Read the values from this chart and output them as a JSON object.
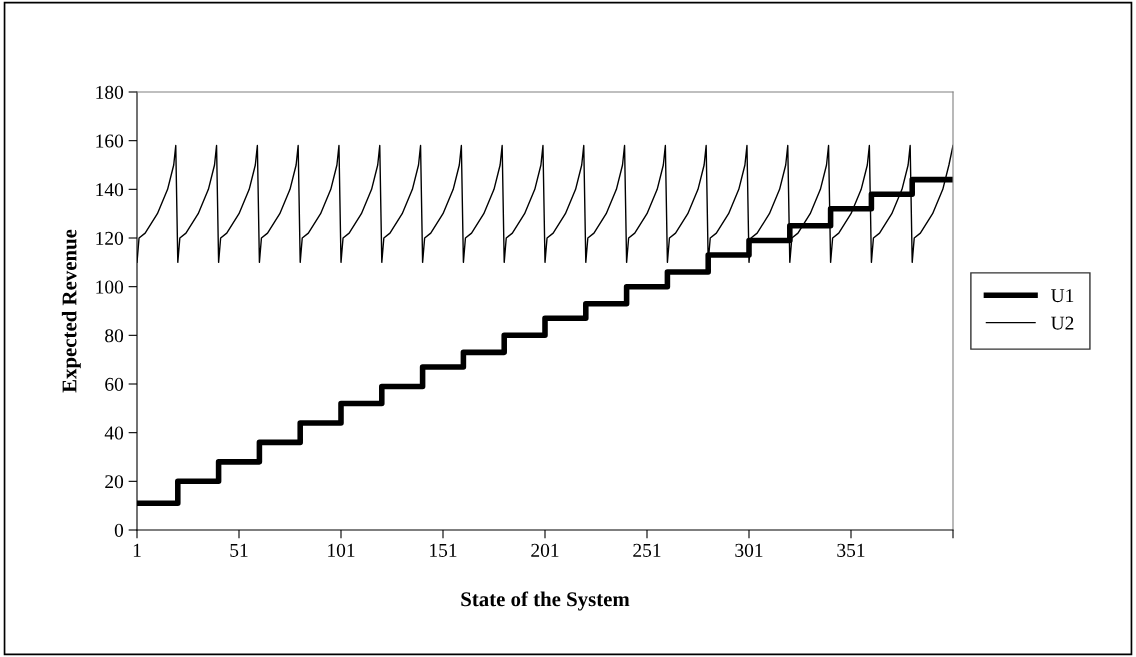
{
  "chart_data": {
    "type": "line",
    "xlabel": "State of the System",
    "ylabel": "Expected Revenue",
    "xlim": [
      1,
      401
    ],
    "xticks": [
      1,
      51,
      101,
      151,
      201,
      251,
      301,
      351,
      {
        "value": 401,
        "label": null
      }
    ],
    "ylim": [
      0,
      180
    ],
    "yticks": [
      0,
      20,
      40,
      60,
      80,
      100,
      120,
      140,
      160,
      180
    ],
    "grid": false,
    "legend": "right",
    "marker": "none",
    "series": [
      {
        "name": "U1",
        "type": "step",
        "color": "#000000",
        "x": [
          1,
          21,
          41,
          61,
          81,
          101,
          121,
          141,
          161,
          181,
          201,
          221,
          241,
          261,
          281,
          301,
          321,
          341,
          361,
          381,
          401
        ],
        "values": [
          11,
          20,
          28,
          36,
          44,
          52,
          59,
          67,
          73,
          80,
          87,
          93,
          100,
          106,
          113,
          119,
          125,
          132,
          138,
          144,
          144
        ]
      },
      {
        "name": "U2",
        "color": "#000000",
        "x": [
          1,
          2,
          5,
          11,
          16,
          19,
          20,
          21,
          22,
          25,
          31,
          36,
          39,
          40,
          41,
          42,
          45,
          51,
          56,
          59,
          60,
          61,
          62,
          65,
          71,
          76,
          79,
          80,
          81,
          82,
          85,
          91,
          96,
          99,
          100,
          101,
          102,
          105,
          111,
          116,
          119,
          120,
          121,
          122,
          125,
          131,
          136,
          139,
          140,
          141,
          142,
          145,
          151,
          156,
          159,
          160,
          161,
          162,
          165,
          171,
          176,
          179,
          180,
          181,
          182,
          185,
          191,
          196,
          199,
          200,
          201,
          202,
          205,
          211,
          216,
          219,
          220,
          221,
          222,
          225,
          231,
          236,
          239,
          240,
          241,
          242,
          245,
          251,
          256,
          259,
          260,
          261,
          262,
          265,
          271,
          276,
          279,
          280,
          281,
          282,
          285,
          291,
          296,
          299,
          300,
          301,
          302,
          305,
          311,
          316,
          319,
          320,
          321,
          322,
          325,
          331,
          336,
          339,
          340,
          341,
          342,
          345,
          351,
          356,
          359,
          360,
          361,
          362,
          365,
          371,
          376,
          379,
          380,
          381,
          382,
          385,
          391,
          396,
          399,
          401
        ],
        "values": [
          110,
          120,
          122,
          130,
          140,
          150,
          158,
          110,
          120,
          122,
          130,
          140,
          150,
          158,
          110,
          120,
          122,
          130,
          140,
          150,
          158,
          110,
          120,
          122,
          130,
          140,
          150,
          158,
          110,
          120,
          122,
          130,
          140,
          150,
          158,
          110,
          120,
          122,
          130,
          140,
          150,
          158,
          110,
          120,
          122,
          130,
          140,
          150,
          158,
          110,
          120,
          122,
          130,
          140,
          150,
          158,
          110,
          120,
          122,
          130,
          140,
          150,
          158,
          110,
          120,
          122,
          130,
          140,
          150,
          158,
          110,
          120,
          122,
          130,
          140,
          150,
          158,
          110,
          120,
          122,
          130,
          140,
          150,
          158,
          110,
          120,
          122,
          130,
          140,
          150,
          158,
          110,
          120,
          122,
          130,
          140,
          150,
          158,
          110,
          120,
          122,
          130,
          140,
          150,
          158,
          110,
          120,
          122,
          130,
          140,
          150,
          158,
          110,
          120,
          122,
          130,
          140,
          150,
          158,
          110,
          120,
          122,
          130,
          140,
          150,
          158,
          110,
          120,
          122,
          130,
          140,
          150,
          158,
          110,
          120,
          122,
          130,
          140,
          150,
          158
        ]
      }
    ]
  }
}
